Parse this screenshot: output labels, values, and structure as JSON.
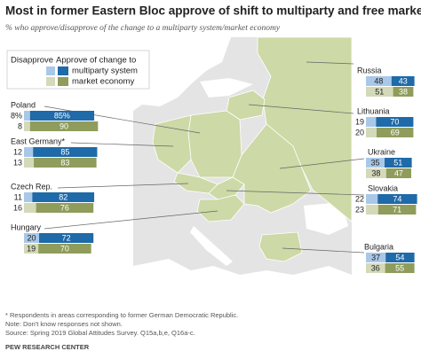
{
  "title": "Most in former Eastern Bloc approve of shift to multiparty and free market systems",
  "subtitle": "% who approve/disapprove of the change to a multiparty system/market economy",
  "legend": {
    "disapprove": "Disapprove",
    "approve": "Approve of change to",
    "multiparty": "multiparty system",
    "market": "market economy"
  },
  "colors": {
    "multiparty": [
      "#a9c8e8",
      "#1f6aa8"
    ],
    "market": [
      "#d3d9b9",
      "#8f9c5c"
    ]
  },
  "countries": [
    {
      "name": "Russia",
      "multiparty": {
        "values": [
          48,
          43
        ]
      },
      "market": {
        "values": [
          51,
          38
        ]
      }
    },
    {
      "name": "Lithuania",
      "multiparty": {
        "values": [
          19,
          70
        ]
      },
      "market": {
        "values": [
          20,
          69
        ]
      }
    },
    {
      "name": "Ukraine",
      "multiparty": {
        "values": [
          35,
          51
        ]
      },
      "market": {
        "values": [
          38,
          47
        ]
      }
    },
    {
      "name": "Slovakia",
      "multiparty": {
        "values": [
          22,
          74
        ]
      },
      "market": {
        "values": [
          23,
          71
        ]
      }
    },
    {
      "name": "Bulgaria",
      "multiparty": {
        "values": [
          37,
          54
        ]
      },
      "market": {
        "values": [
          36,
          55
        ]
      }
    },
    {
      "name": "Poland",
      "multiparty": {
        "values": [
          8,
          85
        ],
        "value_labels": [
          "8%",
          "85%"
        ]
      },
      "market": {
        "values": [
          8,
          90
        ]
      }
    },
    {
      "name": "East Germany*",
      "multiparty": {
        "values": [
          12,
          85
        ]
      },
      "market": {
        "values": [
          13,
          83
        ]
      }
    },
    {
      "name": "Czech Rep.",
      "multiparty": {
        "values": [
          11,
          82
        ]
      },
      "market": {
        "values": [
          16,
          76
        ]
      }
    },
    {
      "name": "Hungary",
      "multiparty": {
        "values": [
          20,
          72
        ]
      },
      "market": {
        "values": [
          19,
          70
        ]
      }
    }
  ],
  "footnotes": [
    "* Respondents in areas corresponding to former German Democratic Republic.",
    "Note: Don't know responses not shown.",
    "Source: Spring 2019 Global Attitudes Survey. Q15a,b,e, Q16a-c.",
    "PEW RESEARCH CENTER"
  ]
}
